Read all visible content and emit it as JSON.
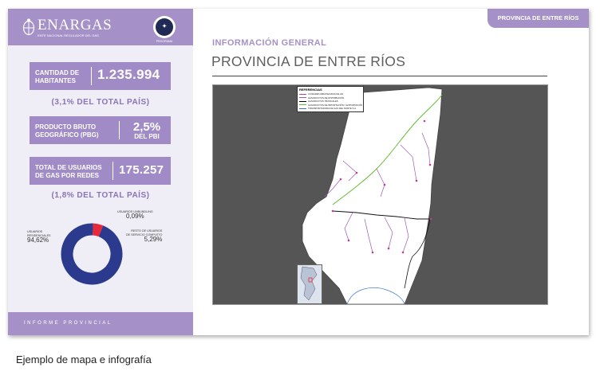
{
  "header": {
    "logo_name": "ENARGAS",
    "logo_subtitle": "ENTE NACIONAL REGULADOR DEL GAS",
    "seal_text": "PROGRAMA",
    "tag": "PROVINCIA DE ENTRE RÍOS"
  },
  "stats": [
    {
      "label_line1": "CANTIDAD DE",
      "label_line2": "HABITANTES",
      "value": "1.235.994"
    },
    {
      "label_line1": "PRODUCTO BRUTO",
      "label_line2": "GEOGRÁFICO (PBG)",
      "value": "2,5%",
      "value_sub": "DEL PBI"
    },
    {
      "label_line1": "TOTAL DE USUARIOS",
      "label_line2": "DE GAS POR REDES",
      "value": "175.257"
    }
  ],
  "notes": {
    "habitantes_pct": "(3,1% DEL TOTAL PAÍS)",
    "usuarios_pct": "(1,8% DEL TOTAL PAÍS)"
  },
  "donut": {
    "segments": [
      {
        "label_line1": "USUARIOS",
        "label_line2": "RESIDENCIALES",
        "value_text": "94,62%",
        "value": 94.62,
        "color": "#2b3a8c"
      },
      {
        "label_line1": "RESTO DE USUARIOS",
        "label_line2": "DE SERVICIO COMPLETO",
        "value_text": "5,29%",
        "value": 5.29,
        "color": "#e8283a"
      },
      {
        "label_line1": "USUARIOS UNBUNDLING",
        "label_line2": "",
        "value_text": "0,09%",
        "value": 0.09,
        "color": "#7a5fb0"
      }
    ]
  },
  "footer": {
    "text": "INFORME PROVINCIAL"
  },
  "main": {
    "section": "INFORMACIÓN GENERAL",
    "title": "PROVINCIA DE ENTRE RÍOS"
  },
  "map": {
    "legend_title": "REFERENCIAS",
    "legend_items": [
      {
        "label": "CIUDADES ABASTECIDAS DE GN",
        "color": "#c23a9a"
      },
      {
        "label": "GASODUCTOS DE DISTRIBUCIÓN",
        "color": "#9b59b6"
      },
      {
        "label": "GASODUCTOS TRONCALES",
        "color": "#000000"
      },
      {
        "label": "GASODUCTOS DE IMPORTACIÓN Y EXPORTACIÓN",
        "color": "#66bb33"
      },
      {
        "label": "TRANSPORTADORA DE GAS DEL NORTE S.A.",
        "color": "#3a6fd0"
      }
    ]
  },
  "caption": "Ejemplo de mapa e infografía",
  "colors": {
    "accent": "#a591c8",
    "stat_box": "#a08bc6",
    "navy": "#2b3a8c"
  }
}
